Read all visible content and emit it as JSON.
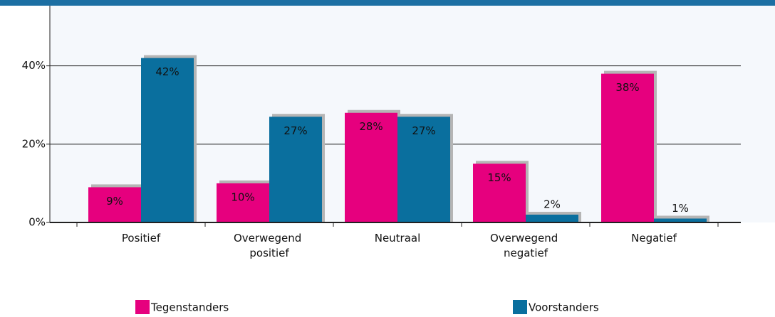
{
  "chart_data": {
    "type": "bar",
    "categories": [
      "Positief",
      "Overwegend positief",
      "Neutraal",
      "Overwegend negatief",
      "Negatief"
    ],
    "series": [
      {
        "name": "Tegenstanders",
        "color": "#e6007e",
        "values": [
          9,
          10,
          28,
          15,
          38
        ],
        "value_labels": [
          "9%",
          "10%",
          "28%",
          "15%",
          "38%"
        ]
      },
      {
        "name": "Voorstanders",
        "color": "#0a6f9e",
        "values": [
          42,
          27,
          27,
          2,
          1
        ],
        "value_labels": [
          "42%",
          "27%",
          "27%",
          "2%",
          "1%"
        ]
      }
    ],
    "ylim": [
      0,
      55
    ],
    "yticks": [
      {
        "value": 0,
        "label": "0%"
      },
      {
        "value": 20,
        "label": "20%"
      },
      {
        "value": 40,
        "label": "40%"
      }
    ],
    "grid": true
  }
}
